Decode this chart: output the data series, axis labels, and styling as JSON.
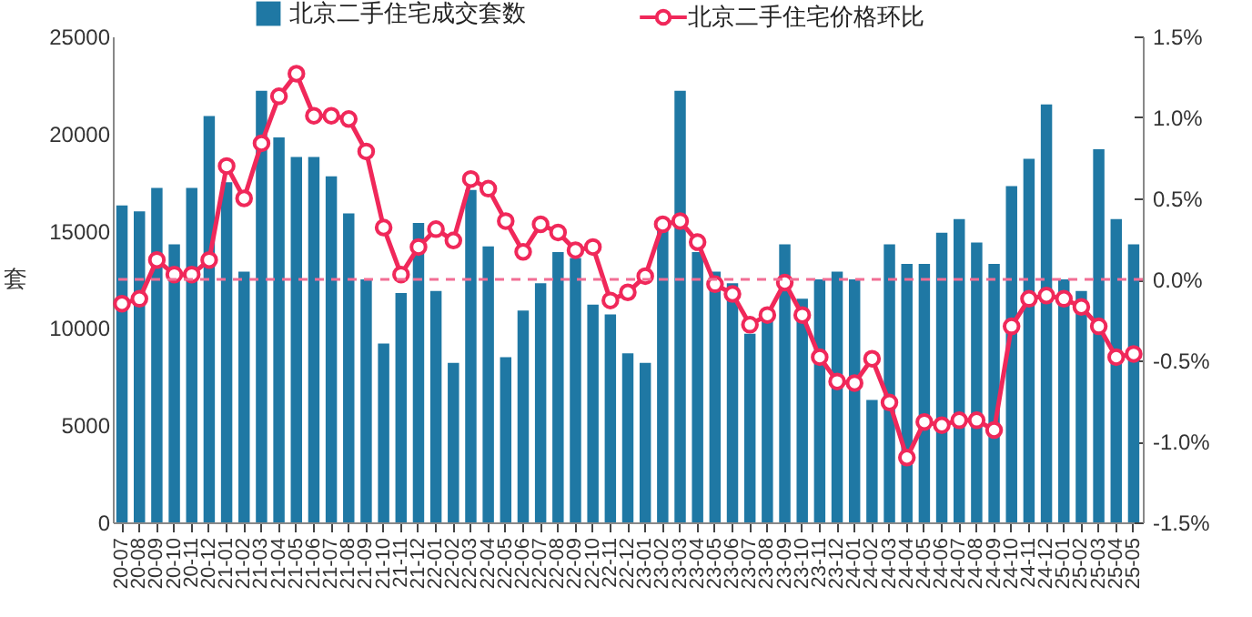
{
  "chart_data": {
    "type": "bar",
    "ylabel": "套",
    "legend": "top",
    "marker": "circle",
    "categories": [
      "20-07",
      "20-08",
      "20-09",
      "20-10",
      "20-11",
      "20-12",
      "21-01",
      "21-02",
      "21-03",
      "21-04",
      "21-05",
      "21-06",
      "21-07",
      "21-08",
      "21-09",
      "21-10",
      "21-11",
      "21-12",
      "22-01",
      "22-02",
      "22-03",
      "22-04",
      "22-05",
      "22-06",
      "22-07",
      "22-08",
      "22-09",
      "22-10",
      "22-11",
      "22-12",
      "23-01",
      "23-02",
      "23-03",
      "23-04",
      "23-05",
      "23-06",
      "23-07",
      "23-08",
      "23-09",
      "23-10",
      "23-11",
      "23-12",
      "24-01",
      "24-02",
      "24-03",
      "24-04",
      "24-05",
      "24-06",
      "24-07",
      "24-08",
      "24-09",
      "24-10",
      "24-11",
      "24-12",
      "25-01",
      "25-02",
      "25-03",
      "25-04",
      "25-05"
    ],
    "series": [
      {
        "name": "北京二手住宅成交套数",
        "color": "#1f78a4",
        "values": [
          16300,
          16000,
          17200,
          14300,
          17200,
          20900,
          17500,
          12900,
          22200,
          19800,
          18800,
          18800,
          17800,
          15900,
          12500,
          9200,
          11800,
          15400,
          11900,
          8200,
          17100,
          14200,
          8500,
          10900,
          12300,
          13900,
          13600,
          11200,
          10700,
          8700,
          8200,
          15100,
          22200,
          13900,
          12900,
          12300,
          9700,
          10400,
          14300,
          11500,
          12500,
          12900,
          12500,
          6300,
          14300,
          13300,
          13300,
          14900,
          15600,
          14400,
          13300,
          17300,
          18700,
          21500,
          12500,
          11900,
          19200,
          15600,
          14300
        ]
      },
      {
        "name": "北京二手住宅价格环比",
        "type": "line",
        "axis": "y2",
        "color": "#f0285a",
        "values": [
          -0.15,
          -0.12,
          0.12,
          0.03,
          0.03,
          0.12,
          0.7,
          0.5,
          0.84,
          1.13,
          1.27,
          1.01,
          1.01,
          0.99,
          0.79,
          0.32,
          0.03,
          0.2,
          0.31,
          0.24,
          0.62,
          0.56,
          0.36,
          0.17,
          0.34,
          0.29,
          0.18,
          0.2,
          -0.13,
          -0.08,
          0.02,
          0.34,
          0.36,
          0.23,
          -0.03,
          -0.09,
          -0.28,
          -0.22,
          -0.02,
          -0.22,
          -0.48,
          -0.63,
          -0.64,
          -0.49,
          -0.76,
          -1.1,
          -0.88,
          -0.9,
          -0.87,
          -0.87,
          -0.93,
          -0.29,
          -0.12,
          -0.1,
          -0.12,
          -0.17,
          -0.29,
          -0.48,
          -0.46
        ]
      }
    ],
    "ylim": [
      0,
      25000
    ],
    "yticks": [
      0,
      5000,
      10000,
      15000,
      20000,
      25000
    ],
    "y2lim": [
      -1.5,
      1.5
    ],
    "y2ticks": [
      {
        "value": -1.5,
        "label": "-1.5%"
      },
      {
        "value": -1.0,
        "label": "-1.0%"
      },
      {
        "value": -0.5,
        "label": "-0.5%"
      },
      {
        "value": 0,
        "label": "0.0%"
      },
      {
        "value": 0.5,
        "label": "0.5%"
      },
      {
        "value": 1.0,
        "label": "1.0%"
      },
      {
        "value": 1.5,
        "label": "1.5%"
      }
    ],
    "ref_lines": [
      {
        "axis": "y2",
        "value": 0,
        "color": "#f26d94",
        "line_style": "dashed"
      }
    ]
  }
}
